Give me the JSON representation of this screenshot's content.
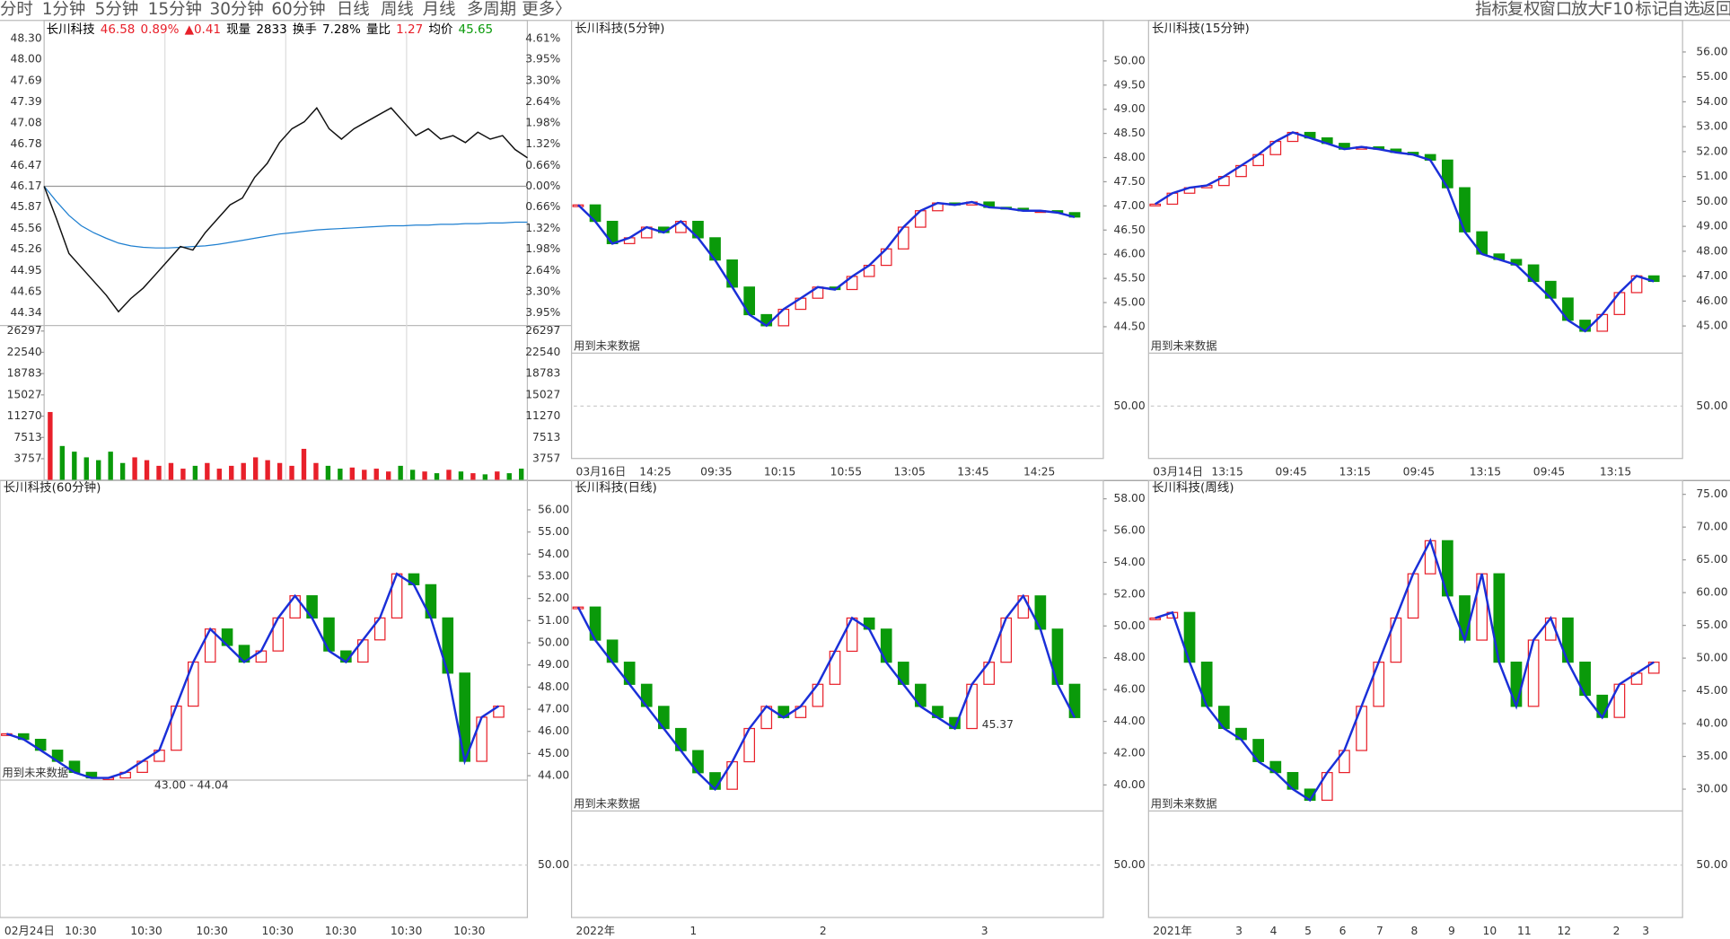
{
  "toolbar": {
    "periods": [
      "分时",
      "1分钟",
      "5分钟",
      "15分钟",
      "30分钟",
      "60分钟",
      "日线",
      "周线",
      "月线",
      "多周期",
      "更多〉"
    ],
    "tools": [
      "指标",
      "复权",
      "窗口",
      "放大",
      "F10",
      "标记",
      "自选",
      "返回"
    ]
  },
  "minute": {
    "quote": [
      {
        "text": "长川科技",
        "color": "#000000"
      },
      {
        "text": "46.58",
        "color": "#e8202a"
      },
      {
        "text": "0.89%",
        "color": "#e8202a"
      },
      {
        "text": "▲0.41",
        "color": "#e8202a"
      },
      {
        "text": "现量",
        "color": "#000000"
      },
      {
        "text": "2833",
        "color": "#000000"
      },
      {
        "text": "换手",
        "color": "#000000"
      },
      {
        "text": "7.28%",
        "color": "#000000"
      },
      {
        "text": "量比",
        "color": "#000000"
      },
      {
        "text": "1.27",
        "color": "#e8202a"
      },
      {
        "text": "均价",
        "color": "#000000"
      },
      {
        "text": "45.65",
        "color": "#0a9a0a"
      }
    ],
    "price_ticks": [
      {
        "value": 48.3,
        "label": "48.30"
      },
      {
        "value": 48,
        "label": "48.00"
      },
      {
        "value": 47.69,
        "label": "47.69"
      },
      {
        "value": 47.39,
        "label": "47.39"
      },
      {
        "value": 47.08,
        "label": "47.08"
      },
      {
        "value": 46.78,
        "label": "46.78"
      },
      {
        "value": 46.47,
        "label": "46.47"
      },
      {
        "value": 46.17,
        "label": "46.17"
      },
      {
        "value": 45.87,
        "label": "45.87"
      },
      {
        "value": 45.56,
        "label": "45.56"
      },
      {
        "value": 45.26,
        "label": "45.26"
      },
      {
        "value": 44.95,
        "label": "44.95"
      },
      {
        "value": 44.65,
        "label": "44.65"
      },
      {
        "value": 44.34,
        "label": "44.34"
      }
    ],
    "pct_ticks": [
      "4.61%",
      "3.95%",
      "3.30%",
      "2.64%",
      "1.98%",
      "1.32%",
      "0.66%",
      "0.00%",
      "0.66%",
      "1.32%",
      "1.98%",
      "2.64%",
      "3.30%",
      "3.95%"
    ],
    "volume_ticks": [
      26297,
      22540,
      18783,
      15027,
      11270,
      7513,
      3757
    ],
    "price_ylim": [
      44.24,
      48.38
    ],
    "volume_ylim": [
      0,
      26297
    ],
    "price": [
      46.17,
      45.7,
      45.2,
      45.0,
      44.8,
      44.6,
      44.36,
      44.55,
      44.7,
      44.9,
      45.1,
      45.3,
      45.25,
      45.5,
      45.7,
      45.9,
      46.0,
      46.3,
      46.5,
      46.8,
      47.0,
      47.1,
      47.3,
      47.0,
      46.85,
      47.0,
      47.1,
      47.2,
      47.3,
      47.1,
      46.9,
      47.0,
      46.85,
      46.9,
      46.8,
      46.95,
      46.85,
      46.9,
      46.7,
      46.58
    ],
    "average": [
      46.17,
      45.95,
      45.75,
      45.6,
      45.5,
      45.42,
      45.35,
      45.31,
      45.29,
      45.28,
      45.28,
      45.29,
      45.3,
      45.31,
      45.33,
      45.36,
      45.39,
      45.42,
      45.45,
      45.48,
      45.5,
      45.52,
      45.54,
      45.55,
      45.56,
      45.57,
      45.58,
      45.59,
      45.6,
      45.6,
      45.61,
      45.61,
      45.62,
      45.62,
      45.63,
      45.63,
      45.64,
      45.64,
      45.65,
      45.65
    ],
    "volume": [
      12000,
      6000,
      5000,
      4000,
      3500,
      5000,
      3000,
      4000,
      3500,
      2500,
      3000,
      2000,
      2500,
      3000,
      2000,
      2500,
      3000,
      4000,
      3500,
      3000,
      2500,
      5500,
      3000,
      2500,
      2000,
      2200,
      1800,
      2000,
      1500,
      2500,
      1800,
      1500,
      1200,
      1800,
      1500,
      1200,
      1000,
      1500,
      1200,
      2000
    ],
    "price_color": "#111111",
    "average_color": "#1e7fd0",
    "up_color": "#e8202a",
    "down_color": "#0a9a0a"
  },
  "panels": [
    {
      "title": "长川科技(5分钟)",
      "future_note": "用到未来数据",
      "indicator_label": "50.00",
      "ticks": [
        {
          "value": 50,
          "label": "50.00"
        },
        {
          "value": 49.5,
          "label": "49.50"
        },
        {
          "value": 49,
          "label": "49.00"
        },
        {
          "value": 48.5,
          "label": "48.50"
        },
        {
          "value": 48,
          "label": "48.00"
        },
        {
          "value": 47.5,
          "label": "47.50"
        },
        {
          "value": 47,
          "label": "47.00"
        },
        {
          "value": 46.5,
          "label": "46.50"
        },
        {
          "value": 46,
          "label": "46.00"
        },
        {
          "value": 45.5,
          "label": "45.50"
        },
        {
          "value": 45,
          "label": "45.00"
        },
        {
          "value": 44.5,
          "label": "44.50"
        }
      ],
      "ylim": [
        44.0,
        50.53
      ],
      "closes": [
        47.02,
        46.68,
        46.22,
        46.34,
        46.56,
        46.45,
        46.68,
        46.34,
        45.88,
        45.32,
        44.75,
        44.52,
        44.86,
        45.09,
        45.32,
        45.27,
        45.54,
        45.77,
        46.11,
        46.56,
        46.9,
        47.06,
        47.02,
        47.08,
        46.97,
        46.95,
        46.9,
        46.9,
        46.86,
        46.77
      ],
      "x_labels": [
        "03月16日",
        "14:25",
        "09:35",
        "10:15",
        "10:55",
        "13:05",
        "13:45",
        "14:25"
      ]
    },
    {
      "title": "长川科技(15分钟)",
      "future_note": "用到未来数据",
      "indicator_label": "50.00",
      "ticks": [
        {
          "value": 56,
          "label": "56.00"
        },
        {
          "value": 55,
          "label": "55.00"
        },
        {
          "value": 54,
          "label": "54.00"
        },
        {
          "value": 53,
          "label": "53.00"
        },
        {
          "value": 52,
          "label": "52.00"
        },
        {
          "value": 51,
          "label": "51.00"
        },
        {
          "value": 50,
          "label": "50.00"
        },
        {
          "value": 49,
          "label": "49.00"
        },
        {
          "value": 48,
          "label": "48.00"
        },
        {
          "value": 47,
          "label": "47.00"
        },
        {
          "value": 46,
          "label": "46.00"
        },
        {
          "value": 45,
          "label": "45.00"
        }
      ],
      "ylim": [
        44.0,
        56.67
      ],
      "closes": [
        49.89,
        50.33,
        50.55,
        50.64,
        51.0,
        51.44,
        51.88,
        52.41,
        52.77,
        52.55,
        52.33,
        52.1,
        52.19,
        52.1,
        51.97,
        51.88,
        51.66,
        50.55,
        48.78,
        47.89,
        47.67,
        47.45,
        46.79,
        46.12,
        45.23,
        44.79,
        45.46,
        46.34,
        47.01,
        46.79
      ],
      "x_labels": [
        "03月14日",
        "13:15",
        "09:45",
        "13:15",
        "09:45",
        "13:15",
        "09:45",
        "13:15"
      ]
    },
    {
      "title": "长川科技(60分钟)",
      "future_note": "用到未来数据",
      "indicator_label": "50.00",
      "note": "43.00 - 44.04",
      "ticks": [
        {
          "value": 56,
          "label": "56.00"
        },
        {
          "value": 55,
          "label": "55.00"
        },
        {
          "value": 54,
          "label": "54.00"
        },
        {
          "value": 53,
          "label": "53.00"
        },
        {
          "value": 52,
          "label": "52.00"
        },
        {
          "value": 51,
          "label": "51.00"
        },
        {
          "value": 50,
          "label": "50.00"
        },
        {
          "value": 49,
          "label": "49.00"
        },
        {
          "value": 48,
          "label": "48.00"
        },
        {
          "value": 47,
          "label": "47.00"
        },
        {
          "value": 46,
          "label": "46.00"
        },
        {
          "value": 45,
          "label": "45.00"
        },
        {
          "value": 44,
          "label": "44.00"
        }
      ],
      "ylim": [
        43.9,
        56.75
      ],
      "closes": [
        45.89,
        45.64,
        45.15,
        44.65,
        44.15,
        43.9,
        43.9,
        44.15,
        44.65,
        45.15,
        47.14,
        49.13,
        50.62,
        49.88,
        49.13,
        49.63,
        51.12,
        52.12,
        51.12,
        49.63,
        49.13,
        50.13,
        51.12,
        53.11,
        52.62,
        51.12,
        48.63,
        44.65,
        46.64,
        47.14
      ],
      "x_labels": [
        "02月24日",
        "10:30",
        "10:30",
        "10:30",
        "10:30",
        "10:30",
        "10:30",
        "10:30"
      ]
    },
    {
      "title": "长川科技(日线)",
      "future_note": "用到未来数据",
      "indicator_label": "50.00",
      "note": "45.37",
      "ticks": [
        {
          "value": 58,
          "label": "58.00"
        },
        {
          "value": 56,
          "label": "56.00"
        },
        {
          "value": 54,
          "label": "54.00"
        },
        {
          "value": 52,
          "label": "52.00"
        },
        {
          "value": 50,
          "label": "50.00"
        },
        {
          "value": 48,
          "label": "48.00"
        },
        {
          "value": 46,
          "label": "46.00"
        },
        {
          "value": 44,
          "label": "44.00"
        },
        {
          "value": 42,
          "label": "42.00"
        },
        {
          "value": 40,
          "label": "40.00"
        }
      ],
      "ylim": [
        38.5,
        58.35
      ],
      "closes": [
        51.19,
        49.11,
        47.72,
        46.33,
        44.94,
        43.55,
        42.16,
        40.77,
        39.73,
        41.46,
        43.55,
        44.94,
        44.24,
        44.94,
        46.33,
        48.41,
        50.5,
        49.8,
        47.72,
        46.33,
        44.94,
        44.24,
        43.55,
        46.33,
        47.72,
        50.5,
        51.89,
        49.8,
        46.33,
        44.24
      ],
      "x_labels": [
        "2022年",
        "1",
        "2",
        "3"
      ]
    },
    {
      "title": "长川科技(周线)",
      "future_note": "用到未来数据",
      "indicator_label": "50.00",
      "ticks": [
        {
          "value": 75,
          "label": "75.00"
        },
        {
          "value": 70,
          "label": "70.00"
        },
        {
          "value": 65,
          "label": "65.00"
        },
        {
          "value": 60,
          "label": "60.00"
        },
        {
          "value": 55,
          "label": "55.00"
        },
        {
          "value": 50,
          "label": "50.00"
        },
        {
          "value": 45,
          "label": "45.00"
        },
        {
          "value": 40,
          "label": "40.00"
        },
        {
          "value": 35,
          "label": "35.00"
        },
        {
          "value": 30,
          "label": "30.00"
        }
      ],
      "ylim": [
        27.0,
        75.17
      ],
      "closes": [
        56.12,
        56.97,
        49.38,
        42.64,
        39.27,
        37.58,
        34.21,
        32.53,
        30.0,
        28.31,
        32.53,
        35.9,
        42.64,
        49.38,
        56.12,
        62.87,
        67.92,
        59.5,
        52.75,
        62.87,
        49.38,
        42.64,
        52.75,
        56.12,
        49.38,
        44.33,
        40.95,
        46.01,
        47.7,
        49.38
      ],
      "x_labels": [
        "2021年",
        "3",
        "4",
        "5",
        "6",
        "7",
        "8",
        "9",
        "10",
        "11",
        "12",
        "2",
        "3"
      ]
    }
  ]
}
